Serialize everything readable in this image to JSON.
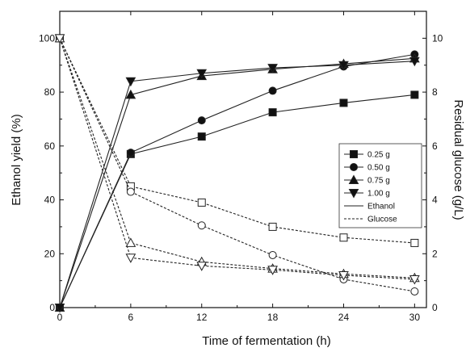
{
  "chart_data": {
    "type": "line",
    "xlabel": "Time of fermentation (h)",
    "ylabel_left": "Ethanol yield (%)",
    "ylabel_right": "Residual glucose (g/L)",
    "x_ticks": [
      0,
      6,
      12,
      18,
      24,
      30
    ],
    "y_left_ticks": [
      0,
      20,
      40,
      60,
      80,
      100
    ],
    "y_right_ticks": [
      0,
      2,
      4,
      6,
      8,
      10
    ],
    "xlim": [
      0,
      31
    ],
    "ylim_left": [
      0,
      110
    ],
    "ylim_right": [
      0,
      11
    ],
    "legend_position": "center-right",
    "legend": [
      {
        "label": "0.25 g",
        "marker": "square"
      },
      {
        "label": "0.50 g",
        "marker": "circle"
      },
      {
        "label": "0.75 g",
        "marker": "triangle-up"
      },
      {
        "label": "1.00 g",
        "marker": "triangle-down"
      },
      {
        "label": "Ethanol",
        "style": "solid"
      },
      {
        "label": "Glucose",
        "style": "dashed"
      }
    ],
    "x": [
      0,
      6,
      12,
      18,
      24,
      30
    ],
    "series": [
      {
        "name": "0.25 g",
        "group": "Ethanol",
        "axis": "left",
        "marker": "square",
        "filled": true,
        "values": [
          0,
          57,
          63.5,
          72.5,
          76,
          79
        ]
      },
      {
        "name": "0.50 g",
        "group": "Ethanol",
        "axis": "left",
        "marker": "circle",
        "filled": true,
        "values": [
          0,
          57.5,
          69.5,
          80.5,
          89.5,
          94
        ]
      },
      {
        "name": "0.75 g",
        "group": "Ethanol",
        "axis": "left",
        "marker": "triangle-up",
        "filled": true,
        "values": [
          0,
          79,
          86,
          88.5,
          90.5,
          92.5
        ]
      },
      {
        "name": "1.00 g",
        "group": "Ethanol",
        "axis": "left",
        "marker": "triangle-down",
        "filled": true,
        "values": [
          0,
          84,
          87,
          89,
          90,
          91.5
        ]
      },
      {
        "name": "0.25 g",
        "group": "Glucose",
        "axis": "right",
        "marker": "square",
        "filled": false,
        "values": [
          10,
          4.5,
          3.9,
          3.0,
          2.6,
          2.4
        ]
      },
      {
        "name": "0.50 g",
        "group": "Glucose",
        "axis": "right",
        "marker": "circle",
        "filled": false,
        "values": [
          10,
          4.3,
          3.05,
          1.95,
          1.05,
          0.6
        ]
      },
      {
        "name": "0.75 g",
        "group": "Glucose",
        "axis": "right",
        "marker": "triangle-up",
        "filled": false,
        "values": [
          10,
          2.4,
          1.7,
          1.45,
          1.25,
          1.1
        ]
      },
      {
        "name": "1.00 g",
        "group": "Glucose",
        "axis": "right",
        "marker": "triangle-down",
        "filled": false,
        "values": [
          10,
          1.85,
          1.55,
          1.4,
          1.2,
          1.05
        ]
      }
    ]
  }
}
